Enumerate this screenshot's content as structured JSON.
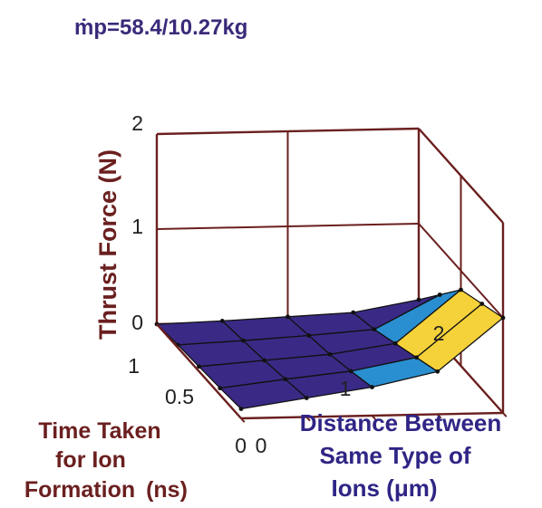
{
  "chart_data": {
    "type": "surface",
    "title": "ṁp=58.4/10.27kg",
    "zlabel": "Thrust Force (N)",
    "ylabel_lines": [
      "Time Taken",
      "for Ion",
      "Formation"
    ],
    "ylabel_unit": "(ns)",
    "xlabel_lines": [
      "Distance Between",
      "Same Type of",
      "Ions (μm)"
    ],
    "x_name": "Distance Between Same Type of Ions (μm)",
    "y_name": "Time Taken for Ion Formation (ns)",
    "z_name": "Thrust Force (N)",
    "x_ticks": [
      "0",
      "1",
      "2"
    ],
    "y_ticks": [
      "0",
      "0.5",
      "1"
    ],
    "z_ticks": [
      "0",
      "1",
      "2"
    ],
    "xlim": [
      0,
      2
    ],
    "ylim": [
      0,
      1
    ],
    "zlim": [
      0,
      2
    ],
    "grid": true,
    "colors": {
      "axes": "#6b1f1f",
      "surface_dark": "#3a2a86",
      "surface_mid": "#2a8fd0",
      "surface_high": "#f6d23a",
      "mesh": "#111111"
    },
    "x": [
      0,
      0.5,
      1.0,
      1.5,
      2.0
    ],
    "y": [
      0,
      0.25,
      0.5,
      0.75,
      1.0
    ],
    "z": [
      [
        0.1,
        0.2,
        0.3,
        0.45,
        1.0
      ],
      [
        0.07,
        0.15,
        0.22,
        0.35,
        0.9
      ],
      [
        0.05,
        0.1,
        0.15,
        0.25,
        0.8
      ],
      [
        0.03,
        0.06,
        0.1,
        0.15,
        0.5
      ],
      [
        0.0,
        0.02,
        0.05,
        0.08,
        0.2
      ]
    ]
  }
}
